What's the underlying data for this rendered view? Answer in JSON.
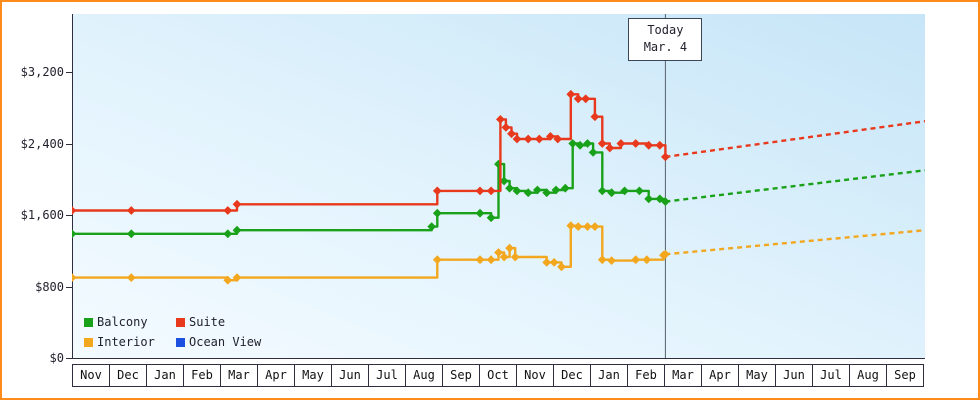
{
  "window": {
    "type": "cabin-price-history-chart"
  },
  "chart_data": {
    "type": "line",
    "x_months": [
      "Nov",
      "Dec",
      "Jan",
      "Feb",
      "Mar",
      "Apr",
      "May",
      "Jun",
      "Jul",
      "Aug",
      "Sep",
      "Oct",
      "Nov",
      "Dec",
      "Jan",
      "Feb",
      "Mar",
      "Apr",
      "May",
      "Jun",
      "Jul",
      "Aug",
      "Sep"
    ],
    "y_ticks": [
      {
        "label": "$0",
        "value": 0
      },
      {
        "label": "$800",
        "value": 800
      },
      {
        "label": "$1,600",
        "value": 1600
      },
      {
        "label": "$2,400",
        "value": 2400
      },
      {
        "label": "$3,200",
        "value": 3200
      }
    ],
    "ylim": [
      0,
      3450
    ],
    "grid": false,
    "legend_position": "bottom-left",
    "today": {
      "label": "Today",
      "date": "Mar. 4",
      "x": 16.0
    },
    "legend": [
      {
        "label": "Balcony",
        "color": "#1aa11a"
      },
      {
        "label": "Suite",
        "color": "#e8391d"
      },
      {
        "label": "Interior",
        "color": "#f2a71f"
      },
      {
        "label": "Ocean View",
        "color": "#1d4fe0"
      }
    ],
    "series": [
      {
        "name": "Interior",
        "color": "#f2a71f",
        "points": [
          [
            0,
            900
          ],
          [
            1.6,
            900
          ],
          [
            4.2,
            870
          ],
          [
            4.45,
            900
          ],
          [
            9.85,
            1100
          ],
          [
            11.0,
            1100
          ],
          [
            11.3,
            1100
          ],
          [
            11.5,
            1180
          ],
          [
            11.65,
            1130
          ],
          [
            11.8,
            1230
          ],
          [
            11.95,
            1130
          ],
          [
            12.8,
            1070
          ],
          [
            13.0,
            1070
          ],
          [
            13.2,
            1020
          ],
          [
            13.45,
            1480
          ],
          [
            13.65,
            1470
          ],
          [
            13.9,
            1470
          ],
          [
            14.1,
            1470
          ],
          [
            14.3,
            1100
          ],
          [
            14.55,
            1090
          ],
          [
            15.2,
            1100
          ],
          [
            15.5,
            1100
          ],
          [
            15.95,
            1150
          ],
          [
            16.0,
            1160
          ]
        ],
        "forecast": [
          [
            16.0,
            1160
          ],
          [
            23,
            1430
          ]
        ]
      },
      {
        "name": "Balcony",
        "color": "#1aa11a",
        "points": [
          [
            0,
            1390
          ],
          [
            1.6,
            1390
          ],
          [
            4.2,
            1390
          ],
          [
            4.45,
            1430
          ],
          [
            9.7,
            1470
          ],
          [
            9.85,
            1620
          ],
          [
            11.0,
            1620
          ],
          [
            11.3,
            1570
          ],
          [
            11.5,
            2170
          ],
          [
            11.65,
            1980
          ],
          [
            11.8,
            1900
          ],
          [
            12.0,
            1870
          ],
          [
            12.3,
            1850
          ],
          [
            12.55,
            1880
          ],
          [
            12.8,
            1850
          ],
          [
            13.05,
            1880
          ],
          [
            13.3,
            1900
          ],
          [
            13.5,
            2400
          ],
          [
            13.7,
            2380
          ],
          [
            13.9,
            2400
          ],
          [
            14.05,
            2300
          ],
          [
            14.3,
            1870
          ],
          [
            14.55,
            1850
          ],
          [
            14.9,
            1870
          ],
          [
            15.3,
            1870
          ],
          [
            15.55,
            1780
          ],
          [
            15.85,
            1780
          ],
          [
            16.0,
            1750
          ]
        ],
        "forecast": [
          [
            16.0,
            1750
          ],
          [
            23,
            2100
          ]
        ]
      },
      {
        "name": "Suite",
        "color": "#e8391d",
        "points": [
          [
            0,
            1650
          ],
          [
            1.6,
            1650
          ],
          [
            4.2,
            1650
          ],
          [
            4.45,
            1720
          ],
          [
            9.85,
            1870
          ],
          [
            11.0,
            1870
          ],
          [
            11.3,
            1870
          ],
          [
            11.55,
            2670
          ],
          [
            11.7,
            2580
          ],
          [
            11.85,
            2510
          ],
          [
            12.0,
            2450
          ],
          [
            12.3,
            2450
          ],
          [
            12.6,
            2450
          ],
          [
            12.9,
            2480
          ],
          [
            13.1,
            2450
          ],
          [
            13.45,
            2950
          ],
          [
            13.65,
            2900
          ],
          [
            13.85,
            2900
          ],
          [
            14.1,
            2700
          ],
          [
            14.3,
            2400
          ],
          [
            14.5,
            2350
          ],
          [
            14.8,
            2400
          ],
          [
            15.2,
            2400
          ],
          [
            15.55,
            2380
          ],
          [
            15.85,
            2380
          ],
          [
            16.0,
            2250
          ]
        ],
        "forecast": [
          [
            16.0,
            2250
          ],
          [
            23,
            2650
          ]
        ]
      },
      {
        "name": "Ocean View",
        "color": "#1d4fe0",
        "points": [],
        "forecast": []
      }
    ]
  }
}
